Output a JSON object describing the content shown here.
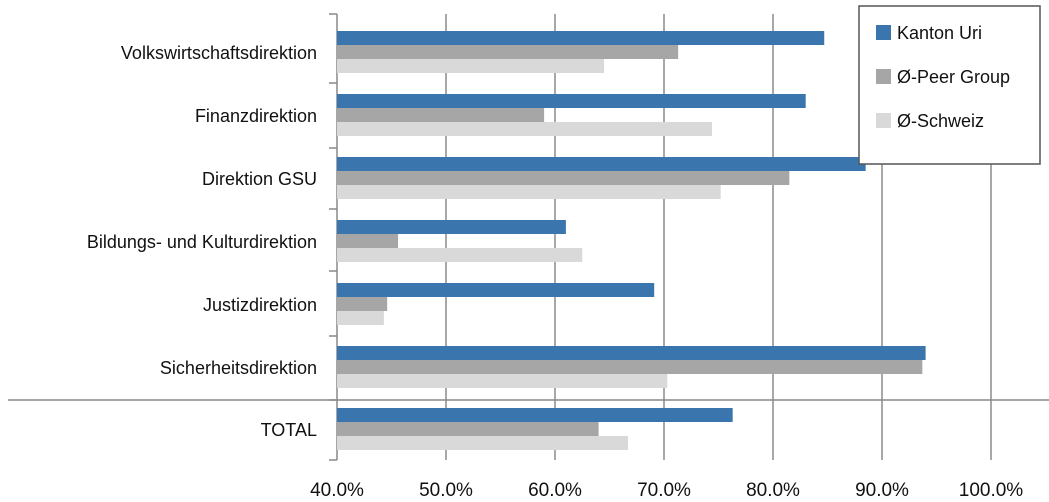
{
  "chart_data": {
    "type": "bar",
    "orientation": "horizontal",
    "categories": [
      "Volkswirtschaftsdirektion",
      "Finanzdirektion",
      "Direktion GSU",
      "Bildungs- und Kulturdirektion",
      "Justizdirektion",
      "Sicherheitsdirektion",
      "TOTAL"
    ],
    "series": [
      {
        "name": "Kanton Uri",
        "color": "#3a76ad",
        "values": [
          84.7,
          83.0,
          88.5,
          61.0,
          69.1,
          94.0,
          76.3
        ]
      },
      {
        "name": "Ø-Peer Group",
        "color": "#a6a6a6",
        "values": [
          71.3,
          59.0,
          81.5,
          45.6,
          44.6,
          93.7,
          64.0
        ]
      },
      {
        "name": "Ø-Schweiz",
        "color": "#d9d9d9",
        "values": [
          64.5,
          74.4,
          75.2,
          62.5,
          44.3,
          70.3,
          66.7
        ]
      }
    ],
    "xlim": [
      40,
      100
    ],
    "xticks": [
      40,
      50,
      60,
      70,
      80,
      90,
      100
    ],
    "tick_labels": [
      "40.0%",
      "50.0%",
      "60.0%",
      "70.0%",
      "80.0%",
      "90.0%",
      "100.0%"
    ],
    "grid": true,
    "legend": "top-right",
    "title": "",
    "xlabel": "",
    "ylabel": ""
  }
}
